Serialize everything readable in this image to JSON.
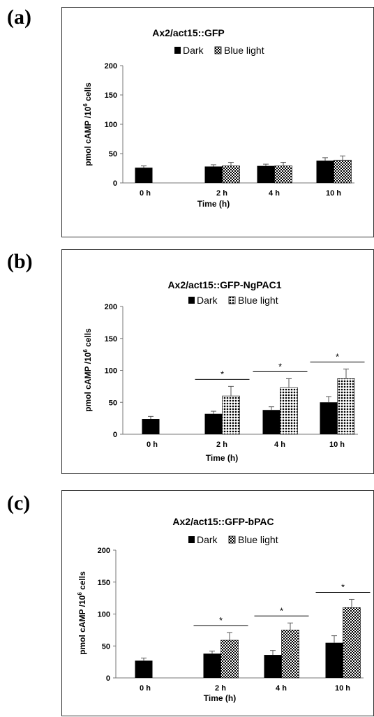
{
  "patterns": {
    "dark_fill": "#000000",
    "blue_light_fill": "checker"
  },
  "panels": [
    {
      "letter": "(a)",
      "chart_data": {
        "type": "bar",
        "title": "Ax2/act15::GFP",
        "ylabel": "pmol cAMP /10",
        "ylabel_sup": "6",
        "ylabel_tail": " cells",
        "xlabel": "Time (h)",
        "categories": [
          "0 h",
          "2 h",
          "4 h",
          "10 h"
        ],
        "legend": [
          "Dark",
          "Blue light"
        ],
        "ylim": [
          0,
          200
        ],
        "yticks": [
          "0",
          "50",
          "100",
          "150",
          "200"
        ],
        "series": [
          {
            "name": "Dark",
            "values": [
              26,
              28,
              29,
              38
            ],
            "errors": [
              3,
              3,
              3,
              5
            ]
          },
          {
            "name": "Blue light",
            "values": [
              null,
              29,
              29,
              39
            ],
            "errors": [
              null,
              6,
              6,
              7
            ]
          }
        ],
        "significance": []
      }
    },
    {
      "letter": "(b)",
      "chart_data": {
        "type": "bar",
        "title": "Ax2/act15::GFP-NgPAC1",
        "ylabel": "pmol cAMP /10",
        "ylabel_sup": "6",
        "ylabel_tail": " cells",
        "xlabel": "Time (h)",
        "categories": [
          "0 h",
          "2 h",
          "4 h",
          "10 h"
        ],
        "legend": [
          "Dark",
          "Blue light"
        ],
        "ylim": [
          0,
          200
        ],
        "yticks": [
          "0",
          "50",
          "100",
          "150",
          "200"
        ],
        "series": [
          {
            "name": "Dark",
            "values": [
              24,
              32,
              38,
              50
            ],
            "errors": [
              4,
              4,
              5,
              9
            ]
          },
          {
            "name": "Blue light",
            "values": [
              null,
              60,
              73,
              87
            ],
            "errors": [
              null,
              15,
              14,
              15
            ]
          }
        ],
        "significance": [
          {
            "category": 1,
            "label": "*"
          },
          {
            "category": 2,
            "label": "*"
          },
          {
            "category": 3,
            "label": "*"
          }
        ]
      }
    },
    {
      "letter": "(c)",
      "chart_data": {
        "type": "bar",
        "title": "Ax2/act15::GFP-bPAC",
        "ylabel": "pmol cAMP /10",
        "ylabel_sup": "6",
        "ylabel_tail": " cells",
        "xlabel": "Time (h)",
        "categories": [
          "0 h",
          "2 h",
          "4 h",
          "10 h"
        ],
        "legend": [
          "Dark",
          "Blue light"
        ],
        "ylim": [
          0,
          200
        ],
        "yticks": [
          "0",
          "50",
          "100",
          "150",
          "200"
        ],
        "series": [
          {
            "name": "Dark",
            "values": [
              27,
              38,
              36,
              55
            ],
            "errors": [
              4,
              4,
              7,
              11
            ]
          },
          {
            "name": "Blue light",
            "values": [
              null,
              59,
              75,
              110
            ],
            "errors": [
              null,
              12,
              11,
              13
            ]
          }
        ],
        "significance": [
          {
            "category": 1,
            "label": "*"
          },
          {
            "category": 2,
            "label": "*"
          },
          {
            "category": 3,
            "label": "*"
          }
        ]
      }
    }
  ]
}
